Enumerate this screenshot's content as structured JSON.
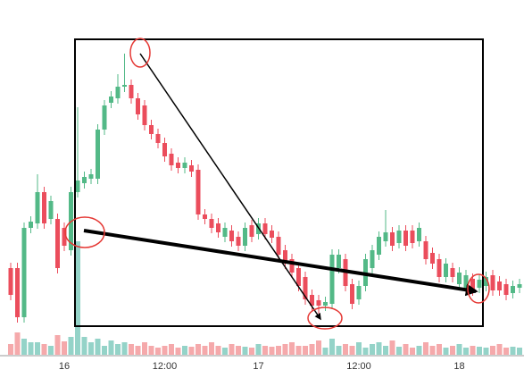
{
  "chart_data": {
    "type": "candlestick",
    "categories": [
      null,
      null,
      null,
      null,
      null,
      null,
      null,
      null,
      "16",
      null,
      null,
      null,
      null,
      null,
      null,
      null,
      null,
      null,
      null,
      null,
      null,
      null,
      null,
      "12:00",
      null,
      null,
      null,
      null,
      null,
      null,
      null,
      null,
      null,
      null,
      null,
      null,
      null,
      "17",
      null,
      null,
      null,
      null,
      null,
      null,
      null,
      null,
      null,
      null,
      null,
      null,
      null,
      null,
      "12:00",
      null,
      null,
      null,
      null,
      null,
      null,
      null,
      null,
      null,
      null,
      null,
      null,
      null,
      null,
      "18",
      null,
      null,
      null,
      null,
      null,
      null,
      null,
      null,
      null
    ],
    "open": [
      123,
      123,
      68,
      168,
      173,
      208,
      178,
      178,
      168,
      143,
      208,
      218,
      223,
      223,
      278,
      308,
      313,
      326,
      328,
      313,
      305,
      283,
      273,
      263,
      251,
      241,
      235,
      238,
      233,
      183,
      178,
      173,
      158,
      165,
      158,
      148,
      171,
      161,
      173,
      165,
      158,
      143,
      133,
      123,
      113,
      93,
      87,
      81,
      83,
      123,
      133,
      105,
      88,
      103,
      123,
      138,
      153,
      163,
      151,
      165,
      165,
      153,
      153,
      140,
      133,
      113,
      123,
      105,
      98,
      111,
      101,
      103,
      115,
      108,
      105,
      95,
      101
    ],
    "high": [
      129,
      129,
      174,
      181,
      228,
      214,
      204,
      184,
      174,
      214,
      303,
      231,
      234,
      284,
      311,
      321,
      340,
      363,
      334,
      319,
      311,
      289,
      279,
      269,
      257,
      247,
      247,
      244,
      239,
      189,
      184,
      179,
      174,
      171,
      164,
      174,
      177,
      179,
      179,
      171,
      164,
      149,
      139,
      129,
      119,
      99,
      93,
      91,
      144,
      144,
      139,
      111,
      109,
      139,
      149,
      164,
      188,
      169,
      171,
      171,
      171,
      174,
      159,
      146,
      139,
      134,
      129,
      124,
      121,
      117,
      116,
      119,
      121,
      114,
      111,
      109,
      111
    ],
    "low": [
      87,
      62,
      62,
      162,
      167,
      167,
      172,
      117,
      142,
      137,
      202,
      212,
      217,
      217,
      272,
      302,
      307,
      320,
      307,
      289,
      277,
      267,
      257,
      242,
      232,
      229,
      229,
      225,
      177,
      172,
      162,
      157,
      152,
      147,
      142,
      142,
      152,
      155,
      155,
      151,
      132,
      122,
      112,
      97,
      82,
      75,
      72,
      75,
      77,
      117,
      97,
      77,
      82,
      97,
      117,
      132,
      147,
      142,
      145,
      142,
      145,
      147,
      127,
      122,
      107,
      107,
      107,
      99,
      92,
      92,
      95,
      97,
      92,
      92,
      87,
      89,
      95
    ],
    "close": [
      93,
      68,
      168,
      175,
      208,
      173,
      198,
      123,
      148,
      208,
      221,
      225,
      228,
      278,
      305,
      315,
      326,
      328,
      313,
      295,
      283,
      273,
      263,
      248,
      238,
      235,
      241,
      231,
      183,
      178,
      168,
      163,
      168,
      153,
      148,
      168,
      158,
      173,
      161,
      157,
      138,
      128,
      118,
      103,
      88,
      81,
      81,
      85,
      138,
      138,
      103,
      83,
      103,
      133,
      143,
      158,
      163,
      148,
      165,
      148,
      151,
      168,
      133,
      128,
      113,
      128,
      113,
      118,
      115,
      98,
      110,
      113,
      98,
      98,
      93,
      103,
      105
    ],
    "volume": [
      12,
      25,
      18,
      14,
      14,
      12,
      10,
      22,
      15,
      20,
      127,
      20,
      14,
      18,
      10,
      16,
      12,
      14,
      12,
      10,
      14,
      10,
      8,
      10,
      12,
      8,
      10,
      9,
      12,
      10,
      14,
      10,
      8,
      12,
      10,
      9,
      8,
      12,
      10,
      9,
      10,
      12,
      14,
      10,
      10,
      12,
      16,
      8,
      18,
      10,
      12,
      10,
      14,
      8,
      12,
      14,
      10,
      16,
      9,
      12,
      8,
      10,
      14,
      10,
      12,
      8,
      10,
      12,
      8,
      10,
      9,
      8,
      10,
      12,
      8,
      9,
      8
    ],
    "up_color": "#53b987",
    "down_color": "#eb4d5c",
    "volume_up_color": "#94d3c8",
    "volume_down_color": "#f5a9ab",
    "ylim": [
      0,
      423
    ],
    "y2lim": [
      0,
      397
    ]
  }
}
